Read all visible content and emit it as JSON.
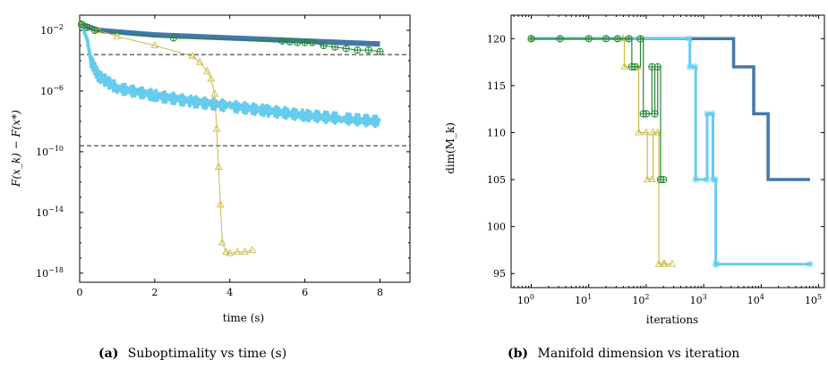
{
  "chart_data": [
    {
      "type": "line",
      "xlabel": "time (s)",
      "ylabel": "F(x_k) − F(x*)",
      "xlim": [
        0,
        8.8
      ],
      "ylim_log10": [
        -18.6,
        -1.0
      ],
      "yscale": "log",
      "x_ticks": [
        "0",
        "2",
        "4",
        "6",
        "8"
      ],
      "x_tick_values": [
        0,
        2,
        4,
        6,
        8
      ],
      "y_ticks": [
        "10",
        "10",
        "10",
        "10",
        "10"
      ],
      "y_tick_exponents": [
        "−2",
        "−6",
        "−10",
        "−14",
        "−18"
      ],
      "y_tick_values_log10": [
        -2,
        -6,
        -10,
        -14,
        -18
      ],
      "reference_lines_log10": [
        -3.6,
        -9.6
      ],
      "caption_label": "(a)",
      "caption_text": "Suboptimality vs time (s)",
      "series": [
        {
          "color": "#4477aa",
          "marker": "none",
          "x": [
            0.05,
            0.5,
            1,
            2,
            3,
            4,
            5,
            6,
            7,
            8
          ],
          "y_log10": [
            -1.6,
            -2.0,
            -2.1,
            -2.3,
            -2.4,
            -2.5,
            -2.6,
            -2.7,
            -2.8,
            -2.9
          ]
        },
        {
          "color": "#66ccee",
          "marker": "none",
          "x": [
            0.05,
            0.2,
            0.3,
            0.5,
            1,
            2,
            3,
            4,
            5,
            6,
            7,
            8
          ],
          "y_log10": [
            -1.6,
            -2.6,
            -4.0,
            -5.0,
            -5.8,
            -6.3,
            -6.7,
            -7.0,
            -7.3,
            -7.6,
            -7.8,
            -8.0
          ]
        },
        {
          "color": "#ccbb44",
          "marker": "triangle",
          "x": [
            0.05,
            0.5,
            1,
            2,
            3,
            3.2,
            3.4,
            3.5,
            3.6,
            3.65,
            3.7,
            3.75,
            3.8,
            3.9,
            4,
            4.2,
            4.4,
            4.6
          ],
          "y_log10": [
            -1.6,
            -2.0,
            -2.4,
            -3.0,
            -3.7,
            -4.1,
            -4.7,
            -5.2,
            -6.2,
            -8.5,
            -11.0,
            -13.5,
            -16.0,
            -16.6,
            -16.7,
            -16.6,
            -16.6,
            -16.5
          ]
        },
        {
          "color": "#228833",
          "marker": "circle-plus",
          "x": [
            0.05,
            0.2,
            0.4,
            2.5,
            5.4,
            5.6,
            5.8,
            6.0,
            6.2,
            6.5,
            6.8,
            7.1,
            7.4,
            7.7,
            8.0
          ],
          "y_log10": [
            -1.6,
            -1.8,
            -2.0,
            -2.5,
            -2.7,
            -2.75,
            -2.8,
            -2.8,
            -2.8,
            -3.0,
            -3.1,
            -3.2,
            -3.3,
            -3.3,
            -3.4
          ]
        }
      ]
    },
    {
      "type": "line",
      "xlabel": "iterations",
      "ylabel": "dim(M_k)",
      "xscale": "log",
      "xlim_log10": [
        -0.35,
        5.1
      ],
      "ylim": [
        93.5,
        122.5
      ],
      "x_ticks": [
        "10",
        "10",
        "10",
        "10",
        "10",
        "10"
      ],
      "x_tick_exponents": [
        "0",
        "1",
        "2",
        "3",
        "4",
        "5"
      ],
      "x_tick_values_log10": [
        0,
        1,
        2,
        3,
        4,
        5
      ],
      "y_ticks": [
        "95",
        "100",
        "105",
        "110",
        "115",
        "120"
      ],
      "y_tick_values": [
        95,
        100,
        105,
        110,
        115,
        120
      ],
      "caption_label": "(b)",
      "caption_text": "Manifold dimension vs iteration",
      "series": [
        {
          "color": "#4477aa",
          "marker": "none",
          "x_log10": [
            0,
            3.5,
            3.52,
            3.85,
            3.87,
            4.1,
            4.12,
            4.85
          ],
          "y": [
            120,
            120,
            117,
            117,
            112,
            112,
            105,
            105
          ]
        },
        {
          "color": "#66ccee",
          "marker": "star",
          "x_log10": [
            0,
            2.75,
            2.76,
            2.85,
            2.86,
            3.05,
            3.06,
            3.15,
            3.16,
            3.2,
            3.21,
            3.22,
            4.85
          ],
          "y": [
            120,
            120,
            117,
            117,
            105,
            105,
            112,
            112,
            105,
            105,
            96,
            96,
            96
          ]
        },
        {
          "color": "#ccbb44",
          "marker": "triangle",
          "x_log10": [
            0,
            1.6,
            1.62,
            1.85,
            1.87,
            2.0,
            2.02,
            2.1,
            2.12,
            2.2,
            2.22,
            2.3,
            2.32,
            2.45
          ],
          "y": [
            120,
            120,
            117,
            117,
            110,
            110,
            105,
            105,
            110,
            110,
            96,
            96,
            96,
            96
          ]
        },
        {
          "color": "#228833",
          "marker": "circle-plus",
          "x_log10": [
            0,
            0.5,
            1.0,
            1.3,
            1.5,
            1.7,
            1.75,
            1.8,
            1.9,
            1.95,
            2.0,
            2.1,
            2.15,
            2.2,
            2.25,
            2.3
          ],
          "y": [
            120,
            120,
            120,
            120,
            120,
            120,
            117,
            117,
            120,
            112,
            112,
            117,
            112,
            117,
            105,
            105
          ]
        }
      ]
    }
  ]
}
